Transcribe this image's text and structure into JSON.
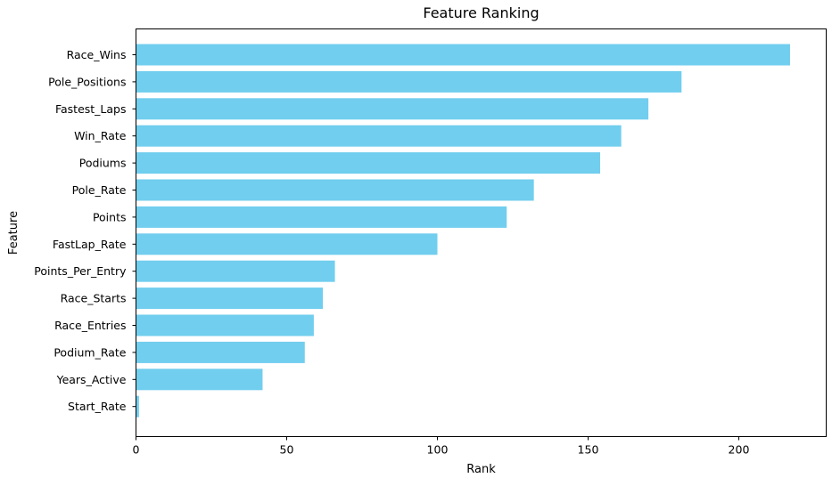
{
  "chart_data": {
    "type": "bar",
    "orientation": "horizontal",
    "title": "Feature Ranking",
    "xlabel": "Rank",
    "ylabel": "Feature",
    "categories": [
      "Race_Wins",
      "Pole_Positions",
      "Fastest_Laps",
      "Win_Rate",
      "Podiums",
      "Pole_Rate",
      "Points",
      "FastLap_Rate",
      "Points_Per_Entry",
      "Race_Starts",
      "Race_Entries",
      "Podium_Rate",
      "Years_Active",
      "Start_Rate"
    ],
    "values": [
      217,
      181,
      170,
      161,
      154,
      132,
      123,
      100,
      66,
      62,
      59,
      56,
      42,
      1
    ],
    "xlim": [
      0,
      229
    ],
    "xticks": [
      0,
      50,
      100,
      150,
      200
    ],
    "grid": false,
    "bar_color": "#71ceee"
  }
}
